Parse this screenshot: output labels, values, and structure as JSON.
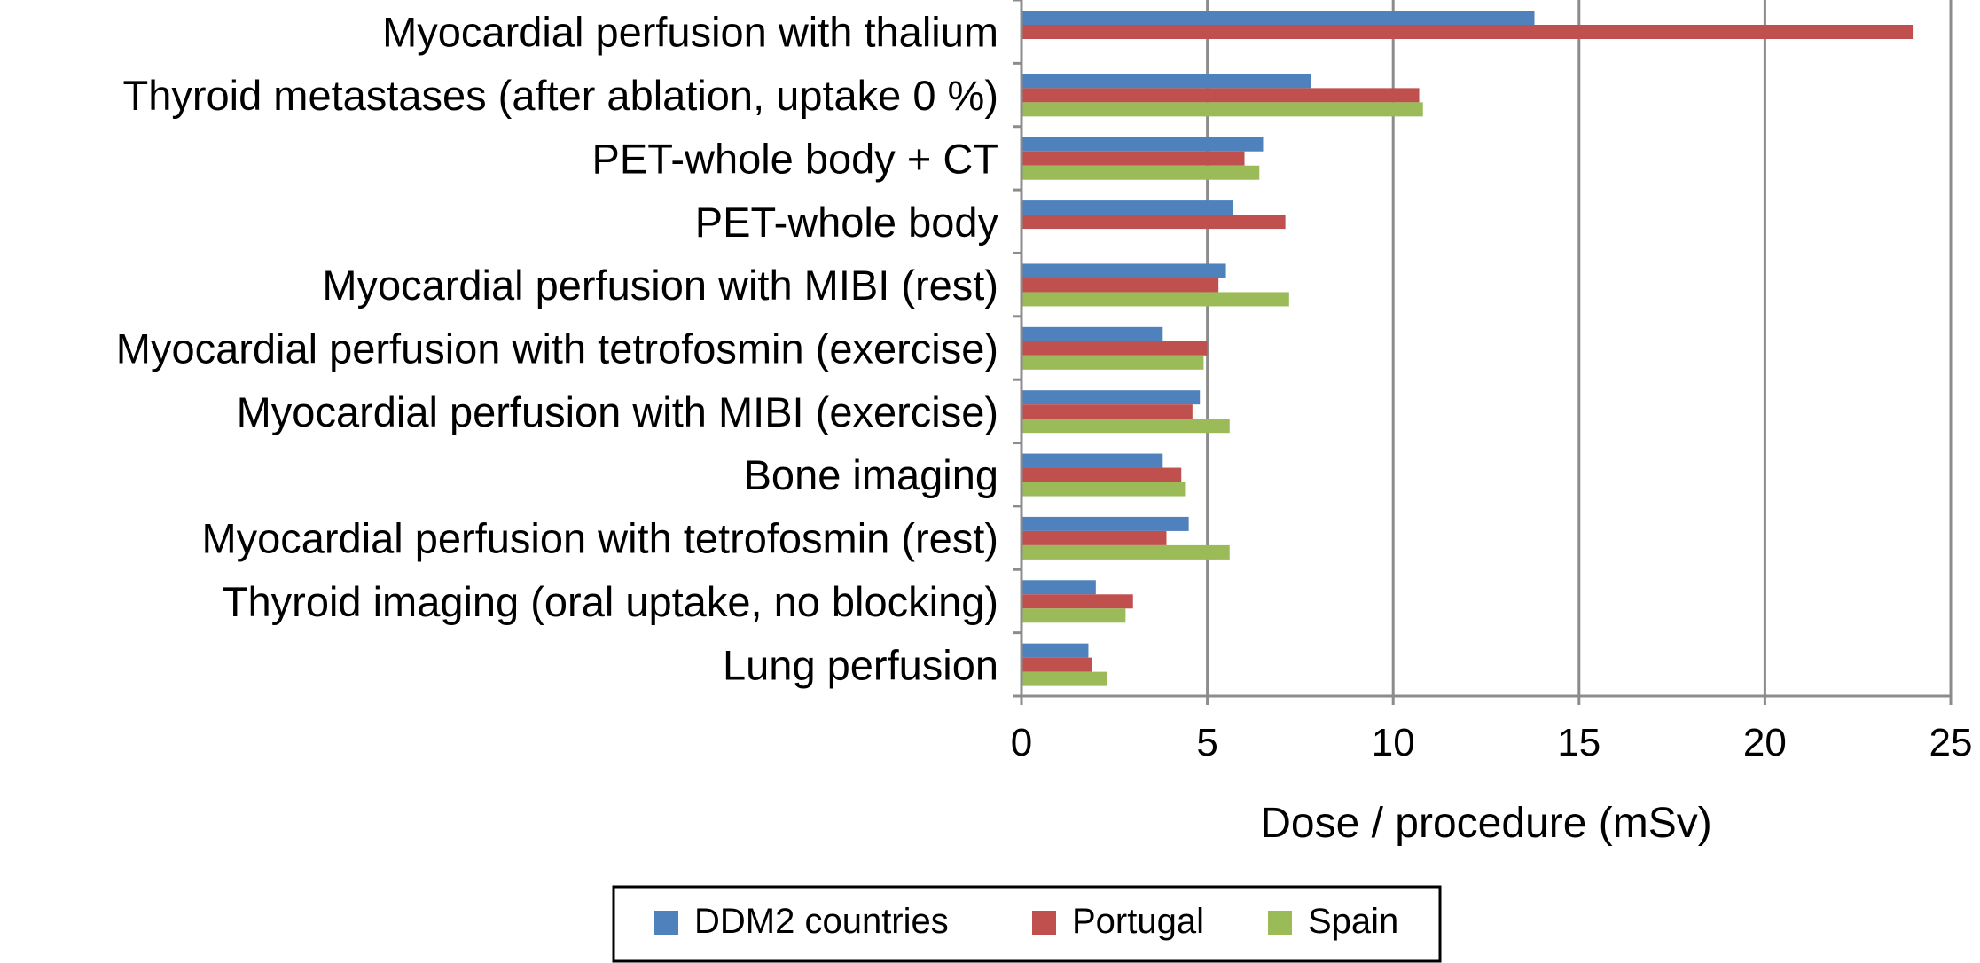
{
  "chart_data": {
    "type": "bar",
    "orientation": "horizontal",
    "title": "",
    "xlabel": "Dose / procedure (mSv)",
    "ylabel": "",
    "xlim": [
      0,
      25
    ],
    "x_ticks": [
      0,
      5,
      10,
      15,
      20,
      25
    ],
    "grid": "vertical gridlines",
    "legend_position": "bottom",
    "categories": [
      "Myocardial perfusion with thalium",
      "Thyroid metastases (after ablation, uptake 0 %)",
      "PET-whole body + CT",
      "PET-whole body",
      "Myocardial perfusion with MIBI (rest)",
      "Myocardial perfusion with tetrofosmin (exercise)",
      "Myocardial perfusion with MIBI (exercise)",
      "Bone imaging",
      "Myocardial perfusion with tetrofosmin (rest)",
      "Thyroid imaging (oral uptake, no blocking)",
      "Lung perfusion"
    ],
    "series": [
      {
        "name": "DDM2 countries",
        "color": "#4f81bd",
        "values": [
          13.8,
          7.8,
          6.5,
          5.7,
          5.5,
          3.8,
          4.8,
          3.8,
          4.5,
          2.0,
          1.8
        ]
      },
      {
        "name": "Portugal",
        "color": "#c0504d",
        "values": [
          24.0,
          10.7,
          6.0,
          7.1,
          5.3,
          5.0,
          4.6,
          4.3,
          3.9,
          3.0,
          1.9
        ]
      },
      {
        "name": "Spain",
        "color": "#9bbb59",
        "values": [
          null,
          10.8,
          6.4,
          null,
          7.2,
          4.9,
          5.6,
          4.4,
          5.6,
          2.8,
          2.3
        ]
      }
    ]
  }
}
